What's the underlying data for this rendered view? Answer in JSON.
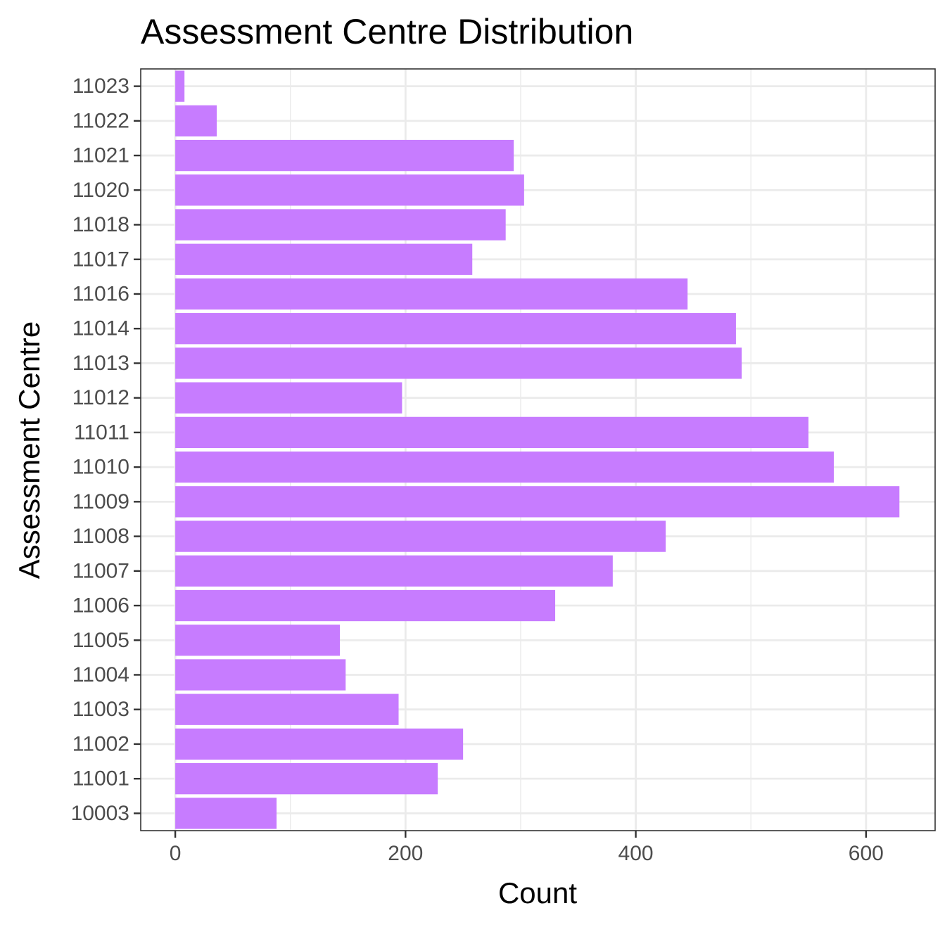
{
  "chart_data": {
    "type": "bar",
    "orientation": "horizontal",
    "title": "Assessment Centre Distribution",
    "xlabel": "Count",
    "ylabel": "Assessment Centre",
    "categories": [
      "10003",
      "11001",
      "11002",
      "11003",
      "11004",
      "11005",
      "11006",
      "11007",
      "11008",
      "11009",
      "11010",
      "11011",
      "11012",
      "11013",
      "11014",
      "11016",
      "11017",
      "11018",
      "11020",
      "11021",
      "11022",
      "11023"
    ],
    "values": [
      88,
      228,
      250,
      194,
      148,
      143,
      330,
      380,
      426,
      629,
      572,
      550,
      197,
      492,
      487,
      445,
      258,
      287,
      303,
      294,
      36,
      8
    ],
    "xlim": [
      -30,
      660
    ],
    "xticks": [
      0,
      200,
      400,
      600
    ],
    "xtick_labels": [
      "0",
      "200",
      "400",
      "600"
    ],
    "grid": true,
    "legend": "none",
    "colors": {
      "bar": "#c77cff",
      "grid": "#ebebeb",
      "panel_border": "#333333",
      "tick_text": "#4d4d4d"
    }
  }
}
